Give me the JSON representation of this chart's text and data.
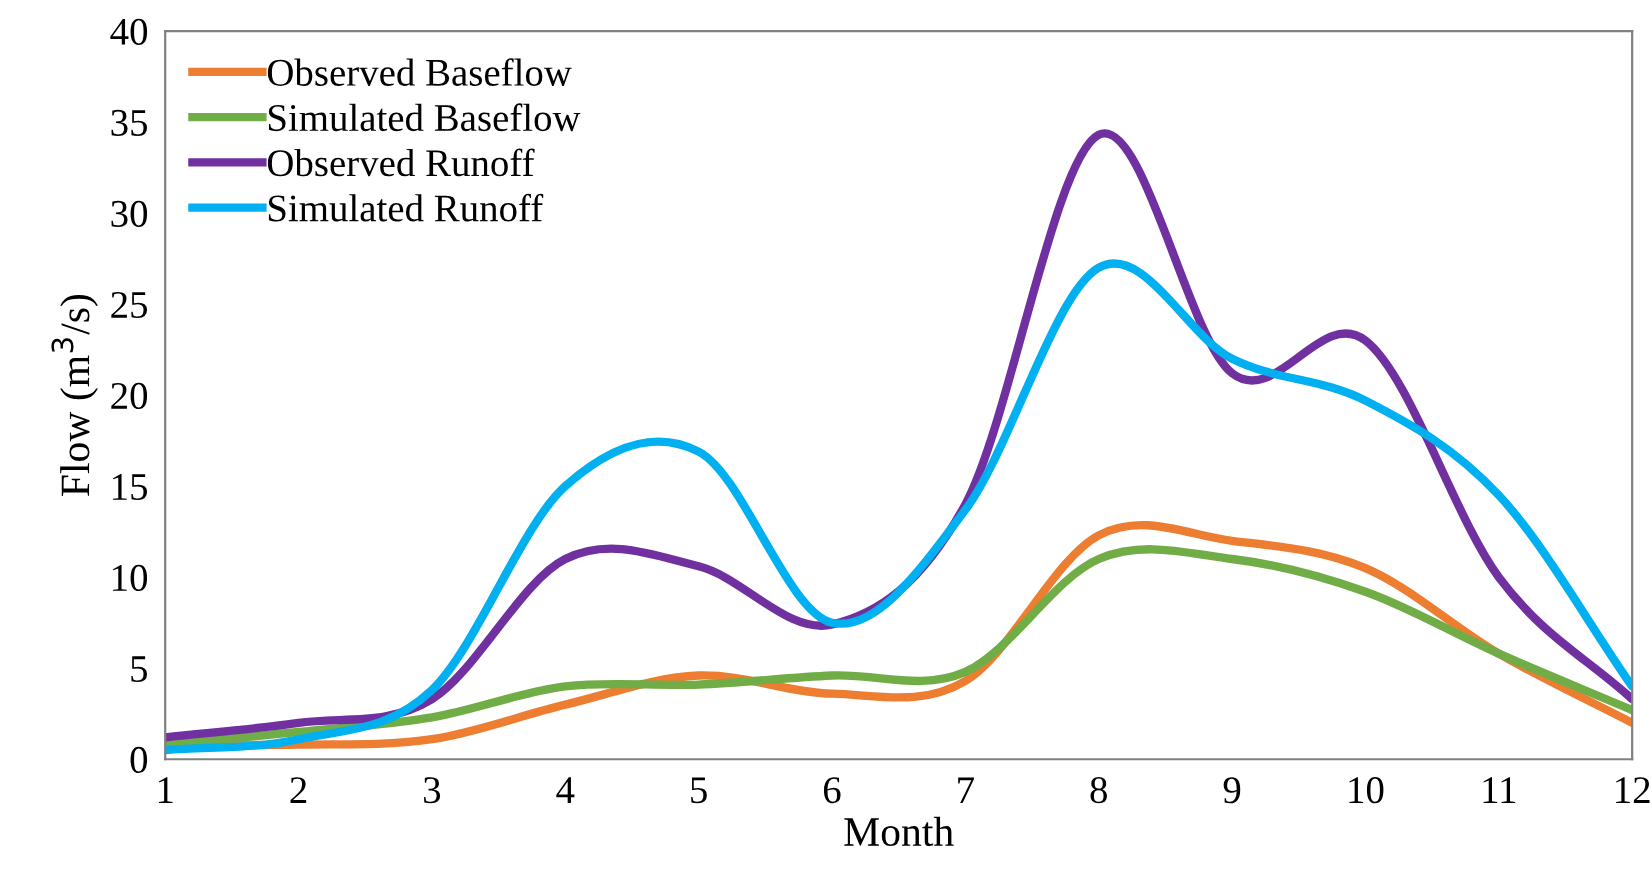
{
  "chart_data": {
    "type": "line",
    "xlabel": "Month",
    "ylabel": "Flow (m$^{3}$/s)",
    "x": [
      1,
      2,
      3,
      4,
      5,
      6,
      7,
      8,
      9,
      10,
      11,
      12
    ],
    "series": [
      {
        "name": "Observed Baseflow",
        "color": "#ed7d31",
        "values": [
          0.8,
          0.8,
          1.1,
          3,
          4.6,
          3.6,
          4.3,
          12.3,
          12,
          10.5,
          5.8,
          2
        ]
      },
      {
        "name": "Simulated Baseflow",
        "color": "#70ad47",
        "values": [
          0.8,
          1.5,
          2.3,
          4,
          4.1,
          4.6,
          4.8,
          11,
          11,
          9.2,
          5.8,
          2.7
        ]
      },
      {
        "name": "Observed Runoff",
        "color": "#7030a0",
        "values": [
          1.2,
          2,
          3.3,
          11,
          10.6,
          7.4,
          14,
          34.3,
          21.2,
          23,
          10,
          3.3
        ]
      },
      {
        "name": "Simulated Runoff",
        "color": "#00b0f0",
        "values": [
          0.5,
          1.1,
          3.8,
          15,
          16.9,
          7.5,
          13.7,
          27,
          22,
          19.7,
          14.5,
          4
        ]
      }
    ],
    "xlim": [
      1,
      12
    ],
    "xticks": [
      1,
      2,
      3,
      4,
      5,
      6,
      7,
      8,
      9,
      10,
      11,
      12
    ],
    "ylim": [
      0,
      40
    ],
    "yticks": [
      0,
      5,
      10,
      15,
      20,
      25,
      30,
      35,
      40
    ],
    "grid": false,
    "legend": "top left",
    "marker": "none",
    "line_style": "solid"
  }
}
